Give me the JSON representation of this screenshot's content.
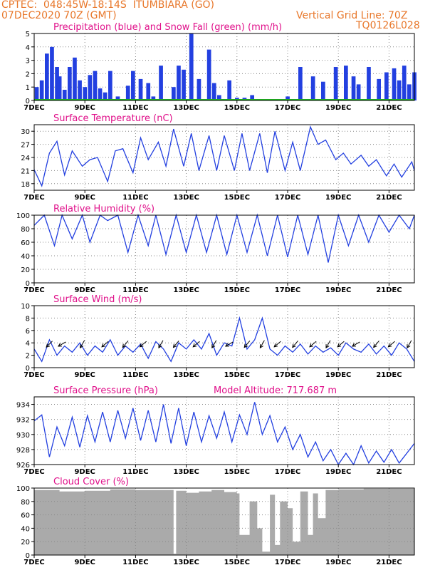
{
  "header": {
    "station": "CPTEC:  048:45W-18:14S  ITUMBIARA (GO)",
    "date": "07DEC2020 70Z (GMT)",
    "grid_note": "Vertical Grid Line: 70Z",
    "model": "TQ0126L028"
  },
  "colors": {
    "header": "#e8772a",
    "title": "#e0108a",
    "line": "#2340e0",
    "snow": "#20b020",
    "cloud": "#aaaaaa"
  },
  "x_ticks": [
    "7DEC",
    "9DEC",
    "11DEC",
    "13DEC",
    "15DEC",
    "17DEC",
    "19DEC",
    "21DEC"
  ],
  "chart_data": [
    {
      "id": "precip",
      "type": "bar",
      "title": "Precipitation (blue) and Snow Fall (green) (mm/h)",
      "ylim": [
        0,
        5
      ],
      "yticks": [
        "5",
        "4",
        "3",
        "2",
        "1",
        "0"
      ],
      "x_days": [
        0.1,
        0.3,
        0.5,
        0.7,
        0.9,
        1.0,
        1.2,
        1.4,
        1.6,
        1.8,
        2.0,
        2.2,
        2.4,
        2.6,
        2.8,
        3.0,
        3.3,
        3.7,
        3.9,
        4.2,
        4.5,
        4.7,
        5.0,
        5.5,
        5.7,
        5.9,
        6.2,
        6.5,
        6.9,
        7.1,
        7.3,
        7.7,
        8.0,
        8.3,
        8.6,
        9.1,
        9.6,
        10.0,
        10.5,
        11.0,
        11.4,
        11.9,
        12.3,
        12.6,
        12.8,
        13.2,
        13.6,
        13.9,
        14.2,
        14.4,
        14.6,
        14.8,
        15.0
      ],
      "values": [
        1.0,
        1.5,
        3.5,
        4.0,
        2.5,
        1.8,
        0.8,
        2.5,
        3.2,
        1.5,
        1.0,
        1.9,
        2.2,
        0.9,
        0.6,
        2.2,
        0.3,
        1.1,
        2.2,
        1.6,
        1.3,
        0.3,
        2.6,
        1.0,
        2.6,
        2.3,
        5.0,
        1.6,
        3.8,
        1.3,
        0.4,
        1.5,
        0.2,
        0.2,
        0.4,
        0.1,
        0.1,
        0.3,
        2.5,
        1.8,
        1.4,
        2.5,
        2.6,
        1.8,
        1.2,
        2.5,
        1.6,
        2.1,
        2.4,
        1.5,
        2.6,
        1.2,
        2.1
      ],
      "snow": 0,
      "xlabel": "",
      "ylabel": ""
    },
    {
      "id": "temp",
      "type": "line",
      "title": "Surface Temperature (nC)",
      "ylim": [
        16.5,
        31.5
      ],
      "yticks": [
        "30",
        "27",
        "24",
        "21",
        "18"
      ],
      "ytick_values": [
        30,
        27,
        24,
        21,
        18
      ],
      "x_days": [
        0,
        0.3,
        0.6,
        0.9,
        1.2,
        1.5,
        1.9,
        2.2,
        2.5,
        2.9,
        3.2,
        3.5,
        3.9,
        4.2,
        4.5,
        4.9,
        5.2,
        5.5,
        5.9,
        6.2,
        6.5,
        6.9,
        7.2,
        7.5,
        7.9,
        8.2,
        8.5,
        8.9,
        9.2,
        9.5,
        9.9,
        10.2,
        10.5,
        10.9,
        11.2,
        11.5,
        11.9,
        12.2,
        12.5,
        12.9,
        13.2,
        13.5,
        13.9,
        14.2,
        14.5,
        14.9,
        15.0
      ],
      "values": [
        21.2,
        17.5,
        25.0,
        27.7,
        20.0,
        25.5,
        22.0,
        23.5,
        24.0,
        18.5,
        25.5,
        26.0,
        20.5,
        28.5,
        23.5,
        27.5,
        22.0,
        30.5,
        22.0,
        29.5,
        21.0,
        29.0,
        21.0,
        29.0,
        21.0,
        29.5,
        21.0,
        29.5,
        20.5,
        30.0,
        21.0,
        27.5,
        21.0,
        31.0,
        27.0,
        28.0,
        23.5,
        25.0,
        22.5,
        24.5,
        22.0,
        23.5,
        19.8,
        22.5,
        19.5,
        23.0,
        21.0
      ],
      "xlabel": "",
      "ylabel": ""
    },
    {
      "id": "rh",
      "type": "line",
      "title": "Relative Humidity (%)",
      "ylim": [
        0,
        100
      ],
      "yticks": [
        "100",
        "80",
        "60",
        "40",
        "20",
        "0"
      ],
      "ytick_values": [
        100,
        80,
        60,
        40,
        20,
        0
      ],
      "x_days": [
        0,
        0.4,
        0.8,
        1.1,
        1.5,
        1.9,
        2.2,
        2.6,
        2.9,
        3.3,
        3.7,
        4.1,
        4.5,
        4.8,
        5.2,
        5.6,
        6.0,
        6.4,
        6.8,
        7.2,
        7.6,
        8.0,
        8.4,
        8.8,
        9.2,
        9.6,
        10.0,
        10.4,
        10.8,
        11.2,
        11.6,
        12.0,
        12.4,
        12.8,
        13.2,
        13.6,
        14.0,
        14.4,
        14.8,
        15.0
      ],
      "values": [
        85,
        100,
        55,
        100,
        65,
        100,
        60,
        100,
        92,
        100,
        45,
        100,
        55,
        100,
        42,
        100,
        45,
        100,
        45,
        100,
        42,
        100,
        45,
        100,
        40,
        100,
        38,
        100,
        42,
        100,
        30,
        100,
        55,
        100,
        60,
        100,
        75,
        100,
        80,
        100
      ],
      "xlabel": "",
      "ylabel": ""
    },
    {
      "id": "wind",
      "type": "line",
      "title": "Surface Wind (m/s)",
      "ylim": [
        0,
        10
      ],
      "yticks": [
        "10",
        "8",
        "6",
        "4",
        "2",
        "0"
      ],
      "ytick_values": [
        10,
        8,
        6,
        4,
        2,
        0
      ],
      "x_days": [
        0,
        0.3,
        0.6,
        0.9,
        1.2,
        1.5,
        1.8,
        2.1,
        2.4,
        2.7,
        3.0,
        3.3,
        3.6,
        3.9,
        4.2,
        4.5,
        4.8,
        5.1,
        5.4,
        5.7,
        6.0,
        6.3,
        6.6,
        6.9,
        7.2,
        7.5,
        7.8,
        8.1,
        8.4,
        8.7,
        9.0,
        9.3,
        9.6,
        9.9,
        10.2,
        10.5,
        10.8,
        11.1,
        11.4,
        11.7,
        12.0,
        12.3,
        12.6,
        12.9,
        13.2,
        13.5,
        13.8,
        14.1,
        14.4,
        14.7,
        15.0
      ],
      "values": [
        3.0,
        1.0,
        4.5,
        2.0,
        3.5,
        2.5,
        4.0,
        2.0,
        3.5,
        2.5,
        4.5,
        2.0,
        3.5,
        2.5,
        3.8,
        1.5,
        4.2,
        3.0,
        1.0,
        4.0,
        3.0,
        4.5,
        3.0,
        5.5,
        2.0,
        4.0,
        3.5,
        8.0,
        3.0,
        4.5,
        8.0,
        3.0,
        2.0,
        3.5,
        2.5,
        3.8,
        2.2,
        3.5,
        2.5,
        3.2,
        2.0,
        4.0,
        3.0,
        2.5,
        3.8,
        2.2,
        3.5,
        2.0,
        4.0,
        3.0,
        1.0
      ],
      "arrows_x_days": [
        0.6,
        1.1,
        1.9,
        2.8,
        3.6,
        4.3,
        5.0,
        5.6,
        6.4,
        7.1,
        7.7,
        8.4,
        9.0,
        9.6,
        10.3,
        11.0,
        11.6,
        12.1,
        12.7,
        13.5,
        14.1,
        14.8
      ],
      "arrows_angle_deg": [
        45,
        30,
        60,
        40,
        50,
        40,
        60,
        50,
        40,
        60,
        30,
        50,
        60,
        40,
        50,
        40,
        60,
        40,
        30,
        50,
        40,
        60
      ],
      "xlabel": "",
      "ylabel": ""
    },
    {
      "id": "pres",
      "type": "line",
      "title": "Surface Pressure (hPa)",
      "annotation": "Model Altitude: 717.687 m",
      "ylim": [
        926,
        935
      ],
      "yticks": [
        "934",
        "932",
        "930",
        "928",
        "926"
      ],
      "ytick_values": [
        934,
        932,
        930,
        928,
        926
      ],
      "x_days": [
        0,
        0.3,
        0.6,
        0.9,
        1.2,
        1.5,
        1.8,
        2.1,
        2.4,
        2.7,
        3.0,
        3.3,
        3.6,
        3.9,
        4.2,
        4.5,
        4.8,
        5.1,
        5.4,
        5.7,
        6.0,
        6.3,
        6.6,
        6.9,
        7.2,
        7.5,
        7.8,
        8.1,
        8.4,
        8.7,
        9.0,
        9.3,
        9.6,
        9.9,
        10.2,
        10.5,
        10.8,
        11.1,
        11.4,
        11.7,
        12.0,
        12.3,
        12.6,
        12.9,
        13.2,
        13.5,
        13.8,
        14.1,
        14.4,
        14.7,
        15.0
      ],
      "values": [
        931.8,
        932.6,
        927.0,
        931.0,
        928.5,
        932.3,
        928.3,
        932.5,
        929.0,
        933.0,
        929.0,
        933.2,
        929.5,
        933.5,
        929.2,
        933.2,
        929.0,
        934.0,
        928.8,
        933.5,
        928.5,
        933.0,
        929.0,
        932.5,
        929.5,
        933.0,
        929.0,
        932.6,
        930.0,
        934.3,
        930.0,
        932.5,
        929.0,
        931.0,
        928.0,
        930.0,
        927.0,
        929.0,
        926.5,
        928.0,
        926.0,
        927.5,
        926.0,
        928.5,
        926.2,
        927.8,
        926.3,
        928.0,
        926.2,
        927.5,
        928.8
      ],
      "xlabel": "",
      "ylabel": ""
    },
    {
      "id": "cloud",
      "type": "area",
      "title": "Cloud Cover (%)",
      "ylim": [
        0,
        100
      ],
      "yticks": [
        "100",
        "80",
        "60",
        "40",
        "20",
        "0"
      ],
      "ytick_values": [
        100,
        80,
        60,
        40,
        20,
        0
      ],
      "x_days": [
        0,
        1,
        2,
        3,
        4,
        5,
        5.5,
        5.6,
        6.0,
        6.5,
        7.0,
        7.5,
        8.0,
        8.1,
        8.5,
        8.8,
        9.0,
        9.3,
        9.5,
        9.7,
        10.0,
        10.2,
        10.5,
        10.8,
        11.0,
        11.2,
        11.5,
        12.0,
        13.0,
        14.0,
        15.0
      ],
      "values": [
        97,
        95,
        96,
        98,
        97,
        97,
        2,
        96,
        93,
        95,
        97,
        94,
        92,
        30,
        80,
        40,
        5,
        90,
        15,
        80,
        70,
        20,
        95,
        30,
        92,
        55,
        97,
        98,
        99,
        99,
        99
      ],
      "xlabel": "",
      "ylabel": ""
    }
  ]
}
